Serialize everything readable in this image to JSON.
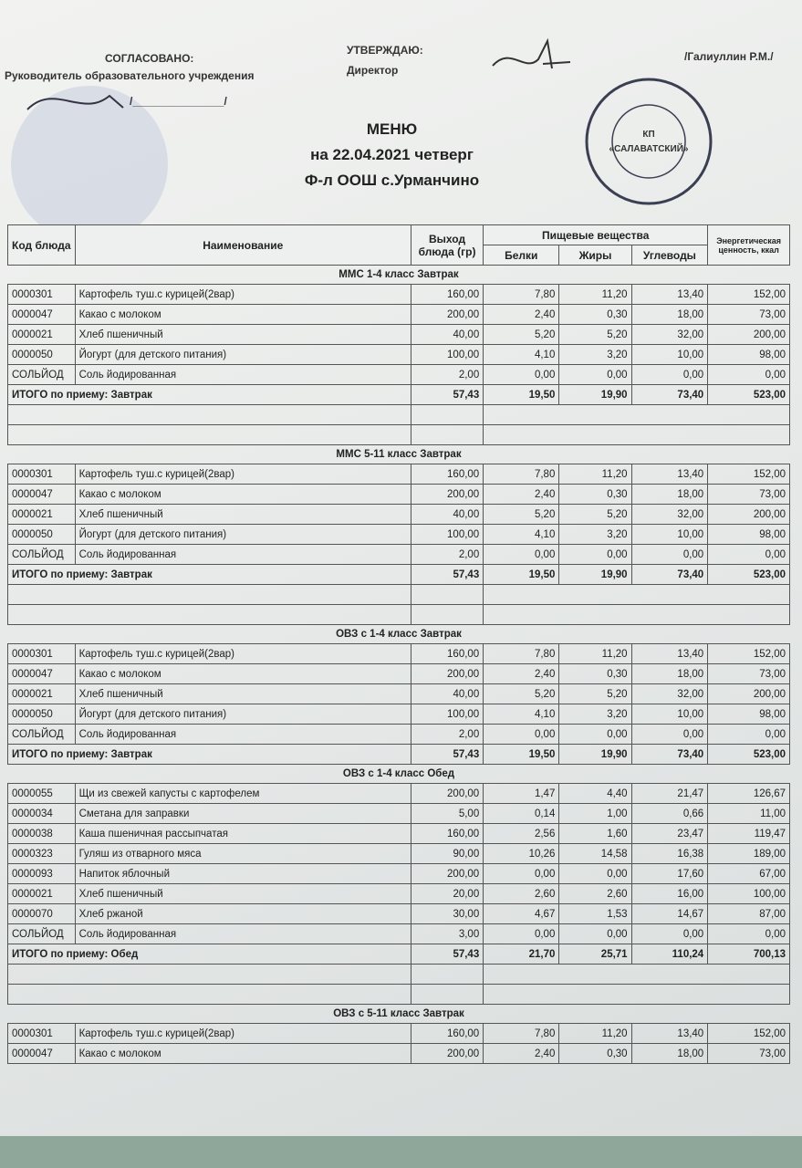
{
  "header": {
    "approved_label": "СОГЛАСОВАНО:",
    "approved_role": "Руководитель образовательного учреждения",
    "signature_line": "/_______________/",
    "confirm_label": "УТВЕРЖДАЮ:",
    "confirm_role": "Директор",
    "director_name": "/Галиуллин Р.М./",
    "stamp_top": "КП",
    "stamp_name": "«САЛАВАТСКИЙ»"
  },
  "title": {
    "heading": "МЕНЮ",
    "date": "на 22.04.2021  четверг",
    "school": "Ф-л ООШ с.Урманчино"
  },
  "table": {
    "columns": {
      "code": "Код блюда",
      "name": "Наименование",
      "weight": "Выход блюда (гр)",
      "nutrients": "Пищевые вещества",
      "protein": "Белки",
      "fat": "Жиры",
      "carbs": "Углеводы",
      "energy": "Энергетическая ценность, ккал"
    },
    "sections": [
      {
        "title": "ММС 1-4 класс Завтрак",
        "rows": [
          [
            "0000301",
            "Картофель туш.с курицей(2вар)",
            "160,00",
            "7,80",
            "11,20",
            "13,40",
            "152,00"
          ],
          [
            "0000047",
            "Какао с молоком",
            "200,00",
            "2,40",
            "0,30",
            "18,00",
            "73,00"
          ],
          [
            "0000021",
            "Хлеб пшеничный",
            "40,00",
            "5,20",
            "5,20",
            "32,00",
            "200,00"
          ],
          [
            "0000050",
            "Йогурт (для детского питания)",
            "100,00",
            "4,10",
            "3,20",
            "10,00",
            "98,00"
          ],
          [
            "СОЛЬЙОД",
            "Соль йодированная",
            "2,00",
            "0,00",
            "0,00",
            "0,00",
            "0,00"
          ]
        ],
        "total": [
          "ИТОГО по приему: Завтрак",
          "57,43",
          "19,50",
          "19,90",
          "73,40",
          "523,00"
        ]
      },
      {
        "title": "ММС 5-11 класс Завтрак",
        "rows": [
          [
            "0000301",
            "Картофель туш.с курицей(2вар)",
            "160,00",
            "7,80",
            "11,20",
            "13,40",
            "152,00"
          ],
          [
            "0000047",
            "Какао с молоком",
            "200,00",
            "2,40",
            "0,30",
            "18,00",
            "73,00"
          ],
          [
            "0000021",
            "Хлеб пшеничный",
            "40,00",
            "5,20",
            "5,20",
            "32,00",
            "200,00"
          ],
          [
            "0000050",
            "Йогурт (для детского питания)",
            "100,00",
            "4,10",
            "3,20",
            "10,00",
            "98,00"
          ],
          [
            "СОЛЬЙОД",
            "Соль йодированная",
            "2,00",
            "0,00",
            "0,00",
            "0,00",
            "0,00"
          ]
        ],
        "total": [
          "ИТОГО по приему: Завтрак",
          "57,43",
          "19,50",
          "19,90",
          "73,40",
          "523,00"
        ]
      },
      {
        "title": "ОВЗ с 1-4 класс Завтрак",
        "rows": [
          [
            "0000301",
            "Картофель туш.с курицей(2вар)",
            "160,00",
            "7,80",
            "11,20",
            "13,40",
            "152,00"
          ],
          [
            "0000047",
            "Какао с молоком",
            "200,00",
            "2,40",
            "0,30",
            "18,00",
            "73,00"
          ],
          [
            "0000021",
            "Хлеб пшеничный",
            "40,00",
            "5,20",
            "5,20",
            "32,00",
            "200,00"
          ],
          [
            "0000050",
            "Йогурт (для детского питания)",
            "100,00",
            "4,10",
            "3,20",
            "10,00",
            "98,00"
          ],
          [
            "СОЛЬЙОД",
            "Соль йодированная",
            "2,00",
            "0,00",
            "0,00",
            "0,00",
            "0,00"
          ]
        ],
        "total": [
          "ИТОГО по приему: Завтрак",
          "57,43",
          "19,50",
          "19,90",
          "73,40",
          "523,00"
        ]
      },
      {
        "title": "ОВЗ с 1-4 класс Обед",
        "rows": [
          [
            "0000055",
            "Щи из свежей капусты с картофелем",
            "200,00",
            "1,47",
            "4,40",
            "21,47",
            "126,67"
          ],
          [
            "0000034",
            "Сметана для заправки",
            "5,00",
            "0,14",
            "1,00",
            "0,66",
            "11,00"
          ],
          [
            "0000038",
            "Каша пшеничная рассыпчатая",
            "160,00",
            "2,56",
            "1,60",
            "23,47",
            "119,47"
          ],
          [
            "0000323",
            "Гуляш из отварного мяса",
            "90,00",
            "10,26",
            "14,58",
            "16,38",
            "189,00"
          ],
          [
            "0000093",
            "Напиток яблочный",
            "200,00",
            "0,00",
            "0,00",
            "17,60",
            "67,00"
          ],
          [
            "0000021",
            "Хлеб пшеничный",
            "20,00",
            "2,60",
            "2,60",
            "16,00",
            "100,00"
          ],
          [
            "0000070",
            "Хлеб ржаной",
            "30,00",
            "4,67",
            "1,53",
            "14,67",
            "87,00"
          ],
          [
            "СОЛЬЙОД",
            "Соль йодированная",
            "3,00",
            "0,00",
            "0,00",
            "0,00",
            "0,00"
          ]
        ],
        "total": [
          "ИТОГО по приему: Обед",
          "57,43",
          "21,70",
          "25,71",
          "110,24",
          "700,13"
        ]
      },
      {
        "title": "ОВЗ с 5-11 класс Завтрак",
        "rows": [
          [
            "0000301",
            "Картофель туш.с курицей(2вар)",
            "160,00",
            "7,80",
            "11,20",
            "13,40",
            "152,00"
          ],
          [
            "0000047",
            "Какао с молоком",
            "200,00",
            "2,40",
            "0,30",
            "18,00",
            "73,00"
          ]
        ]
      }
    ]
  }
}
